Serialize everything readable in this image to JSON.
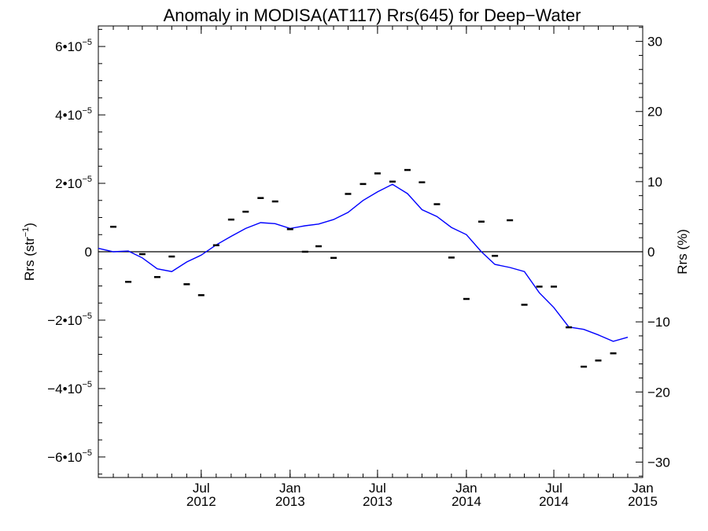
{
  "chart_data": {
    "type": "line",
    "title": "Anomaly in MODISA(AT117) Rrs(645) for Deep−Water",
    "ylabel_left": {
      "base": "Rrs (str",
      "sup": "−1",
      "close": ")"
    },
    "ylabel_right": "Rrs (%)",
    "x_range": [
      "2011-12-01",
      "2015-01-01"
    ],
    "y_left_range": [
      -6.6e-05,
      6.6e-05
    ],
    "y_right_range": [
      -32.2,
      32.2
    ],
    "y_left_ticks": [
      {
        "value": -6e-05,
        "mant": "−6•10",
        "exp": "−5"
      },
      {
        "value": -4e-05,
        "mant": "−4•10",
        "exp": "−5"
      },
      {
        "value": -2e-05,
        "mant": "−2•10",
        "exp": "−5"
      },
      {
        "value": 0,
        "mant": "0",
        "exp": ""
      },
      {
        "value": 2e-05,
        "mant": "2•10",
        "exp": "−5"
      },
      {
        "value": 4e-05,
        "mant": "4•10",
        "exp": "−5"
      },
      {
        "value": 6e-05,
        "mant": "6•10",
        "exp": "−5"
      }
    ],
    "y_right_ticks": [
      {
        "value": -30,
        "label": "−30"
      },
      {
        "value": -20,
        "label": "−20"
      },
      {
        "value": -10,
        "label": "−10"
      },
      {
        "value": 0,
        "label": "0"
      },
      {
        "value": 10,
        "label": "10"
      },
      {
        "value": 20,
        "label": "20"
      },
      {
        "value": 30,
        "label": "30"
      }
    ],
    "x_ticks": [
      {
        "date": "2012-07-01",
        "month": "Jul",
        "year": "2012"
      },
      {
        "date": "2013-01-01",
        "month": "Jan",
        "year": "2013"
      },
      {
        "date": "2013-07-01",
        "month": "Jul",
        "year": "2013"
      },
      {
        "date": "2014-01-01",
        "month": "Jan",
        "year": "2014"
      },
      {
        "date": "2014-07-01",
        "month": "Jul",
        "year": "2014"
      },
      {
        "date": "2015-01-01",
        "month": "Jan",
        "year": "2015"
      }
    ],
    "zero_line": true,
    "monthly_points": [
      {
        "x": "2012-01-01",
        "y": 7.3e-06
      },
      {
        "x": "2012-02-01",
        "y": -8.8e-06
      },
      {
        "x": "2012-03-01",
        "y": -7e-07
      },
      {
        "x": "2012-04-01",
        "y": -7.4e-06
      },
      {
        "x": "2012-05-01",
        "y": -1.4e-06
      },
      {
        "x": "2012-06-01",
        "y": -9.5e-06
      },
      {
        "x": "2012-07-01",
        "y": -1.27e-05
      },
      {
        "x": "2012-08-01",
        "y": 1.9e-06
      },
      {
        "x": "2012-09-01",
        "y": 9.4e-06
      },
      {
        "x": "2012-10-01",
        "y": 1.17e-05
      },
      {
        "x": "2012-11-01",
        "y": 1.57e-05
      },
      {
        "x": "2012-12-01",
        "y": 1.47e-05
      },
      {
        "x": "2013-01-01",
        "y": 6.6e-06
      },
      {
        "x": "2013-02-01",
        "y": 0.0
      },
      {
        "x": "2013-03-01",
        "y": 1.6e-06
      },
      {
        "x": "2013-04-01",
        "y": -1.8e-06
      },
      {
        "x": "2013-05-01",
        "y": 1.69e-05
      },
      {
        "x": "2013-06-01",
        "y": 1.98e-05
      },
      {
        "x": "2013-07-01",
        "y": 2.29e-05
      },
      {
        "x": "2013-08-01",
        "y": 2.05e-05
      },
      {
        "x": "2013-09-01",
        "y": 2.39e-05
      },
      {
        "x": "2013-10-01",
        "y": 2.03e-05
      },
      {
        "x": "2013-11-01",
        "y": 1.39e-05
      },
      {
        "x": "2013-12-01",
        "y": -1.7e-06
      },
      {
        "x": "2014-01-01",
        "y": -1.38e-05
      },
      {
        "x": "2014-02-01",
        "y": 8.8e-06
      },
      {
        "x": "2014-03-01",
        "y": -1.2e-06
      },
      {
        "x": "2014-04-01",
        "y": 9.2e-06
      },
      {
        "x": "2014-05-01",
        "y": -1.55e-05
      },
      {
        "x": "2014-06-01",
        "y": -1.02e-05
      },
      {
        "x": "2014-07-01",
        "y": -1.02e-05
      },
      {
        "x": "2014-08-01",
        "y": -2.21e-05
      },
      {
        "x": "2014-09-01",
        "y": -3.36e-05
      },
      {
        "x": "2014-10-01",
        "y": -3.18e-05
      },
      {
        "x": "2014-11-01",
        "y": -2.97e-05
      }
    ],
    "trend_line": [
      {
        "x": "2011-12-01",
        "y": 1e-06
      },
      {
        "x": "2012-01-01",
        "y": 0.0
      },
      {
        "x": "2012-02-01",
        "y": 2e-07
      },
      {
        "x": "2012-03-01",
        "y": -1.8e-06
      },
      {
        "x": "2012-04-01",
        "y": -5e-06
      },
      {
        "x": "2012-05-01",
        "y": -5.8e-06
      },
      {
        "x": "2012-06-01",
        "y": -3e-06
      },
      {
        "x": "2012-07-01",
        "y": -1e-06
      },
      {
        "x": "2012-08-01",
        "y": 2e-06
      },
      {
        "x": "2012-09-01",
        "y": 4.5e-06
      },
      {
        "x": "2012-10-01",
        "y": 6.8e-06
      },
      {
        "x": "2012-11-01",
        "y": 8.5e-06
      },
      {
        "x": "2012-12-01",
        "y": 8.2e-06
      },
      {
        "x": "2013-01-01",
        "y": 6.8e-06
      },
      {
        "x": "2013-02-01",
        "y": 7.6e-06
      },
      {
        "x": "2013-03-01",
        "y": 8.1e-06
      },
      {
        "x": "2013-04-01",
        "y": 9.4e-06
      },
      {
        "x": "2013-05-01",
        "y": 1.15e-05
      },
      {
        "x": "2013-06-01",
        "y": 1.5e-05
      },
      {
        "x": "2013-07-01",
        "y": 1.75e-05
      },
      {
        "x": "2013-08-01",
        "y": 1.97e-05
      },
      {
        "x": "2013-09-01",
        "y": 1.7e-05
      },
      {
        "x": "2013-10-01",
        "y": 1.23e-05
      },
      {
        "x": "2013-11-01",
        "y": 1.03e-05
      },
      {
        "x": "2013-12-01",
        "y": 7.1e-06
      },
      {
        "x": "2014-01-01",
        "y": 5e-06
      },
      {
        "x": "2014-02-01",
        "y": 0.0
      },
      {
        "x": "2014-03-01",
        "y": -3.7e-06
      },
      {
        "x": "2014-04-01",
        "y": -4.6e-06
      },
      {
        "x": "2014-05-01",
        "y": -5.8e-06
      },
      {
        "x": "2014-06-01",
        "y": -1.2e-05
      },
      {
        "x": "2014-07-01",
        "y": -1.63e-05
      },
      {
        "x": "2014-08-01",
        "y": -2.2e-05
      },
      {
        "x": "2014-09-01",
        "y": -2.27e-05
      },
      {
        "x": "2014-10-01",
        "y": -2.43e-05
      },
      {
        "x": "2014-11-01",
        "y": -2.62e-05
      },
      {
        "x": "2014-12-01",
        "y": -2.5e-05
      }
    ],
    "colors": {
      "trend": "#0000ff",
      "points": "#000000",
      "axes": "#000000"
    },
    "grid": false
  }
}
